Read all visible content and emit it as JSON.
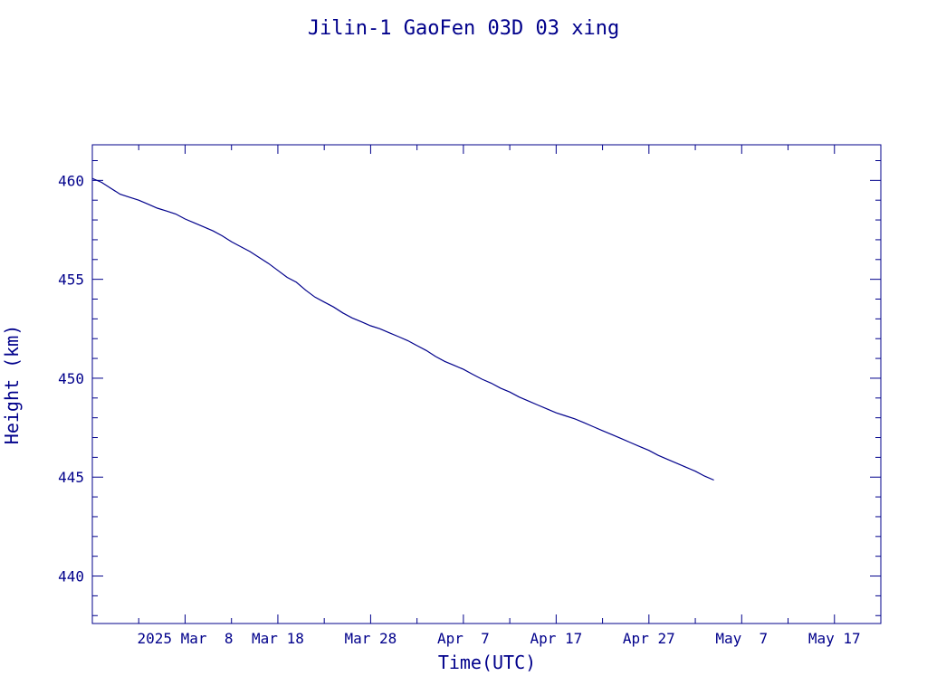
{
  "chart_data": {
    "type": "line",
    "title": "Jilin-1 GaoFen 03D 03 xing",
    "xlabel": "Time(UTC)",
    "ylabel": "Height (km)",
    "xlim": [
      "2025-02-26",
      "2025-05-22"
    ],
    "ylim": [
      437.6,
      461.8
    ],
    "grid": false,
    "x_tick_labels": [
      {
        "date": "2025-03-08",
        "label": "2025 Mar  8"
      },
      {
        "date": "2025-03-18",
        "label": "Mar 18"
      },
      {
        "date": "2025-03-28",
        "label": "Mar 28"
      },
      {
        "date": "2025-04-07",
        "label": "Apr  7"
      },
      {
        "date": "2025-04-17",
        "label": "Apr 17"
      },
      {
        "date": "2025-04-27",
        "label": "Apr 27"
      },
      {
        "date": "2025-05-07",
        "label": "May  7"
      },
      {
        "date": "2025-05-17",
        "label": "May 17"
      }
    ],
    "y_ticks": [
      440,
      445,
      450,
      455,
      460
    ],
    "series": [
      {
        "color": "#00008b",
        "x": [
          "2025-02-26",
          "2025-02-27",
          "2025-02-28",
          "2025-03-01",
          "2025-03-02",
          "2025-03-03",
          "2025-03-04",
          "2025-03-05",
          "2025-03-06",
          "2025-03-07",
          "2025-03-08",
          "2025-03-09",
          "2025-03-10",
          "2025-03-11",
          "2025-03-12",
          "2025-03-13",
          "2025-03-14",
          "2025-03-15",
          "2025-03-16",
          "2025-03-17",
          "2025-03-18",
          "2025-03-19",
          "2025-03-20",
          "2025-03-21",
          "2025-03-22",
          "2025-03-23",
          "2025-03-24",
          "2025-03-25",
          "2025-03-26",
          "2025-03-27",
          "2025-03-28",
          "2025-03-29",
          "2025-03-30",
          "2025-03-31",
          "2025-04-01",
          "2025-04-02",
          "2025-04-03",
          "2025-04-04",
          "2025-04-05",
          "2025-04-06",
          "2025-04-07",
          "2025-04-08",
          "2025-04-09",
          "2025-04-10",
          "2025-04-11",
          "2025-04-12",
          "2025-04-13",
          "2025-04-14",
          "2025-04-15",
          "2025-04-16",
          "2025-04-17",
          "2025-04-18",
          "2025-04-19",
          "2025-04-20",
          "2025-04-21",
          "2025-04-22",
          "2025-04-23",
          "2025-04-24",
          "2025-04-25",
          "2025-04-26",
          "2025-04-27",
          "2025-04-28",
          "2025-04-29",
          "2025-04-30",
          "2025-05-01",
          "2025-05-02",
          "2025-05-03",
          "2025-05-04"
        ],
        "y": [
          460.1,
          459.9,
          459.6,
          459.3,
          459.15,
          459.0,
          458.8,
          458.6,
          458.45,
          458.3,
          458.05,
          457.85,
          457.65,
          457.45,
          457.2,
          456.9,
          456.65,
          456.4,
          456.1,
          455.8,
          455.45,
          455.1,
          454.85,
          454.45,
          454.1,
          453.85,
          453.6,
          453.3,
          453.05,
          452.85,
          452.65,
          452.5,
          452.3,
          452.1,
          451.9,
          451.65,
          451.4,
          451.1,
          450.85,
          450.65,
          450.45,
          450.2,
          449.95,
          449.75,
          449.5,
          449.3,
          449.05,
          448.85,
          448.65,
          448.45,
          448.25,
          448.1,
          447.95,
          447.75,
          447.55,
          447.35,
          447.15,
          446.95,
          446.75,
          446.55,
          446.35,
          446.1,
          445.9,
          445.7,
          445.5,
          445.3,
          445.05,
          444.85
        ]
      }
    ]
  }
}
